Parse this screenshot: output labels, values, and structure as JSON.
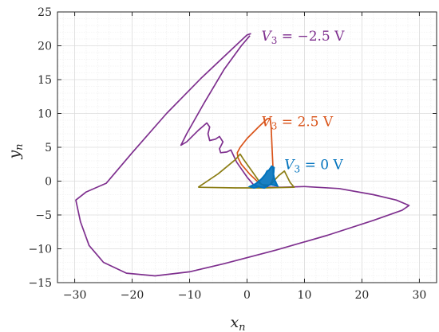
{
  "chart_data": {
    "type": "line",
    "xlabel": "x",
    "xlabel_sub": "n",
    "ylabel": "y",
    "ylabel_sub": "n",
    "xlim": [
      -33,
      33
    ],
    "ylim": [
      -15,
      25
    ],
    "xticks": [
      -30,
      -20,
      -10,
      0,
      10,
      20,
      30
    ],
    "yticks": [
      -15,
      -10,
      -5,
      0,
      5,
      10,
      15,
      20,
      25
    ],
    "xtick_labels": [
      "−30",
      "−20",
      "−10",
      "0",
      "10",
      "20",
      "30"
    ],
    "ytick_labels": [
      "−15",
      "−10",
      "−5",
      "0",
      "5",
      "10",
      "15",
      "20",
      "25"
    ],
    "grid": true,
    "minor_grid": true,
    "series": [
      {
        "name": "V3 = −2.5 V",
        "color": "#7e2f8e",
        "points": [
          [
            0.5,
            21.5
          ],
          [
            -1,
            20
          ],
          [
            -4,
            16.5
          ],
          [
            -7.5,
            11.5
          ],
          [
            -10.5,
            7
          ],
          [
            -11.5,
            5.3
          ],
          [
            -10.5,
            5.8
          ],
          [
            -8.5,
            7.5
          ],
          [
            -7,
            8.6
          ],
          [
            -6.5,
            8
          ],
          [
            -6.8,
            7
          ],
          [
            -6.5,
            6
          ],
          [
            -5.5,
            6.2
          ],
          [
            -4.8,
            6.6
          ],
          [
            -4.2,
            5.8
          ],
          [
            -4.8,
            4.8
          ],
          [
            -4.6,
            4.2
          ],
          [
            -3.5,
            4.3
          ],
          [
            -2.8,
            4.6
          ],
          [
            -1.8,
            2.8
          ],
          [
            0,
            0.6
          ],
          [
            1.2,
            -0.6
          ],
          [
            2.5,
            -0.9
          ],
          [
            6,
            -0.9
          ],
          [
            10,
            -0.8
          ],
          [
            16,
            -1.1
          ],
          [
            22,
            -2.0
          ],
          [
            26,
            -2.8
          ],
          [
            28.2,
            -3.6
          ],
          [
            27,
            -4.3
          ],
          [
            22,
            -5.8
          ],
          [
            14,
            -8
          ],
          [
            5,
            -10.2
          ],
          [
            -4,
            -12.2
          ],
          [
            -10,
            -13.4
          ],
          [
            -16,
            -14.0
          ],
          [
            -21,
            -13.6
          ],
          [
            -25,
            -12.0
          ],
          [
            -27.5,
            -9.5
          ],
          [
            -29,
            -6
          ],
          [
            -29.8,
            -2.8
          ],
          [
            -28,
            -1.6
          ],
          [
            -24.5,
            -0.3
          ],
          [
            -20,
            4.2
          ],
          [
            -14,
            10
          ],
          [
            -8,
            15.2
          ],
          [
            -3,
            19.2
          ],
          [
            0,
            21.6
          ],
          [
            0.7,
            21.8
          ]
        ]
      },
      {
        "name": "V3 = 2.5 V",
        "color": "#d95319",
        "points": [
          [
            4,
            9.3
          ],
          [
            3.5,
            9.2
          ],
          [
            2,
            8
          ],
          [
            0,
            6.3
          ],
          [
            -1.2,
            5.0
          ],
          [
            -1.7,
            4.2
          ],
          [
            -1.6,
            3.5
          ],
          [
            -1,
            2.5
          ],
          [
            0.5,
            1
          ],
          [
            2,
            -0.2
          ],
          [
            3,
            -0.7
          ],
          [
            4,
            -0.6
          ],
          [
            4.6,
            0.5
          ],
          [
            4.4,
            4
          ],
          [
            4.2,
            8
          ],
          [
            4,
            9.3
          ]
        ]
      },
      {
        "name": "",
        "color": "#8b7d14",
        "points": [
          [
            -8.5,
            -0.9
          ],
          [
            -5,
            1.1
          ],
          [
            -2,
            3.2
          ],
          [
            -1.2,
            4.0
          ],
          [
            -0.6,
            3.2
          ],
          [
            1,
            1.3
          ],
          [
            2.5,
            -0.5
          ],
          [
            4,
            -0.6
          ],
          [
            5.5,
            0.8
          ],
          [
            6.5,
            1.5
          ],
          [
            7.5,
            -0.2
          ],
          [
            8.2,
            -0.9
          ],
          [
            3,
            -1.0
          ],
          [
            -2,
            -1.0
          ],
          [
            -8.5,
            -0.9
          ]
        ]
      },
      {
        "name": "V3 = 0 V",
        "color": "#0072bd",
        "points": [
          [
            0.5,
            -0.8
          ],
          [
            1.5,
            -0.4
          ],
          [
            2.5,
            0.3
          ],
          [
            3.2,
            1.0
          ],
          [
            3.5,
            1.5
          ],
          [
            3.8,
            1.6
          ],
          [
            4.3,
            2.2
          ],
          [
            4.7,
            2.0
          ],
          [
            4.6,
            1.0
          ],
          [
            4.8,
            0.2
          ],
          [
            5.3,
            -0.7
          ],
          [
            4,
            -0.5
          ],
          [
            3,
            -1.0
          ],
          [
            2,
            -0.8
          ],
          [
            1.2,
            -1.0
          ],
          [
            0.5,
            -0.8
          ]
        ]
      }
    ],
    "annotations": [
      {
        "series": "V3 = −2.5 V",
        "symbol": "V",
        "sub": "3",
        "text": " = −2.5 V",
        "color": "#7e2f8e",
        "at": [
          2.5,
          21.5
        ]
      },
      {
        "series": "V3 = 2.5 V",
        "symbol": "V",
        "sub": "3",
        "text": " = 2.5 V",
        "color": "#d95319",
        "at": [
          2.5,
          8.8
        ]
      },
      {
        "series": "V3 = 0 V",
        "symbol": "V",
        "sub": "3",
        "text": " = 0 V",
        "color": "#0072bd",
        "at": [
          6.5,
          2.5
        ]
      }
    ]
  }
}
